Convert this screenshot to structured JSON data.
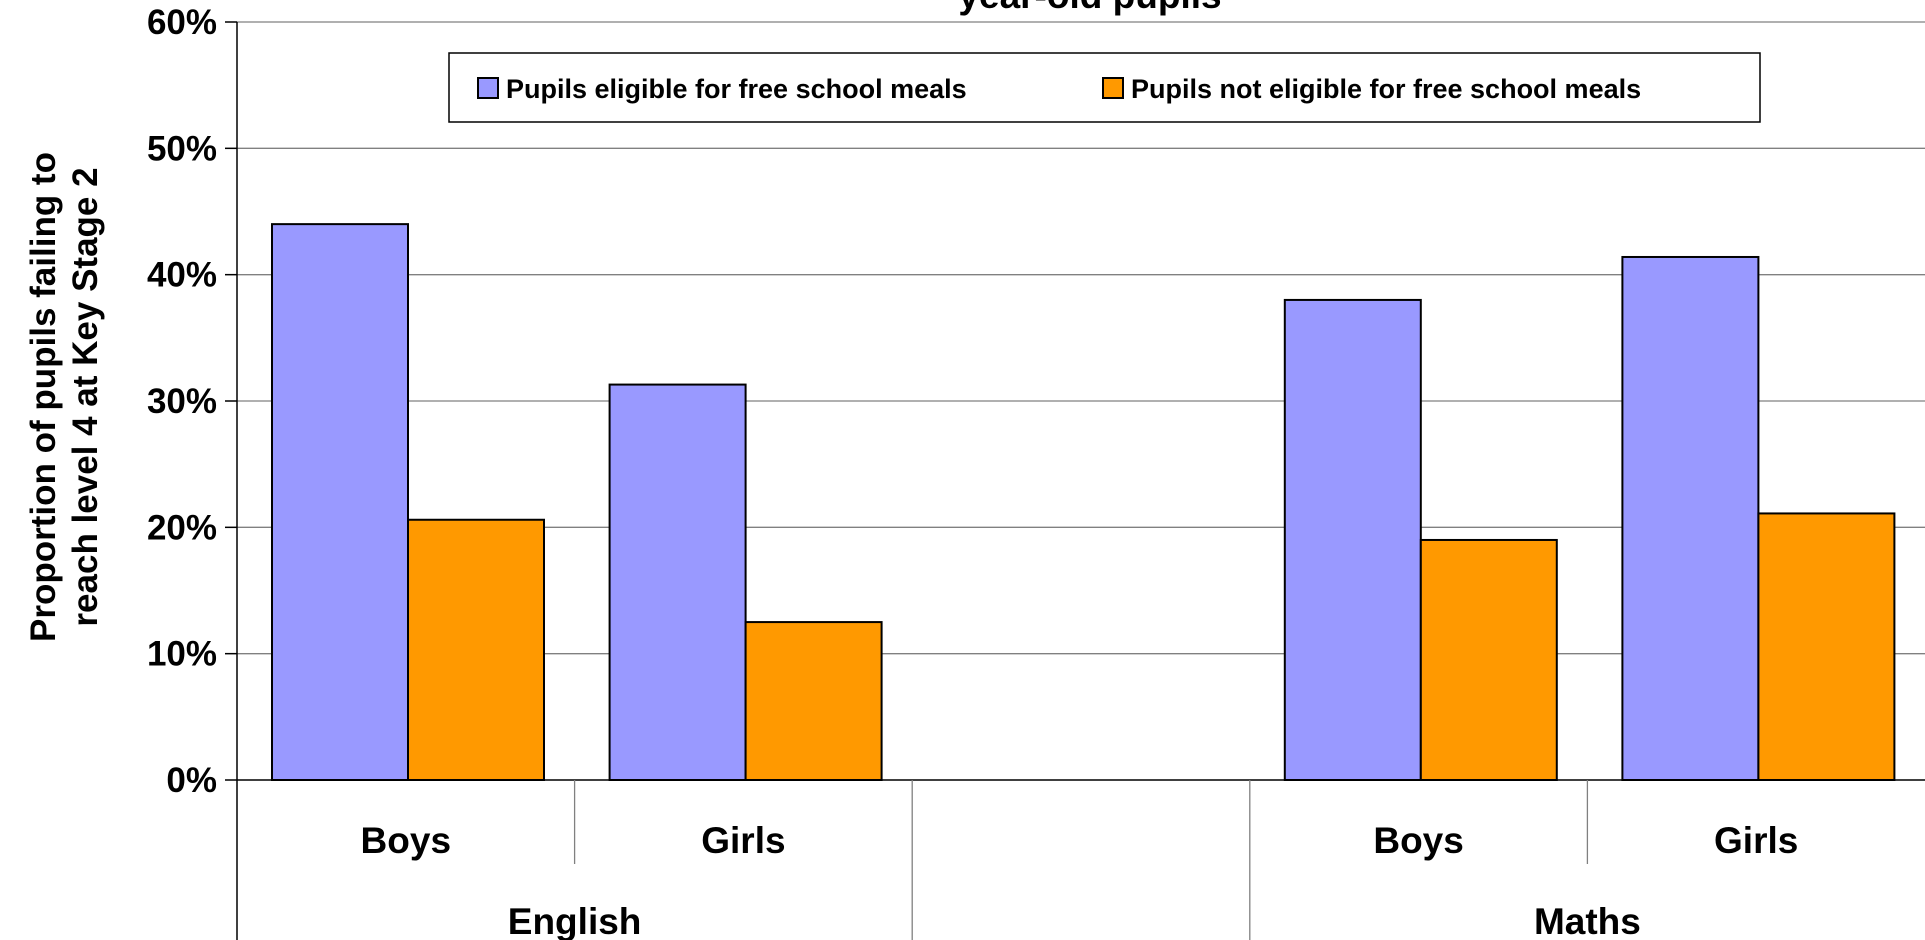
{
  "chart_data": {
    "type": "bar",
    "title": "year-old pupils",
    "ylabel": "Proportion of pupils failing to reach level 4 at Key Stage 2",
    "ylabel_lines": [
      "Proportion of pupils failing to",
      "reach level 4 at Key Stage 2"
    ],
    "xlabel": "",
    "ylim": [
      0,
      0.6
    ],
    "yticks": [
      0,
      0.1,
      0.2,
      0.3,
      0.4,
      0.5,
      0.6
    ],
    "ytick_labels": [
      "0%",
      "10%",
      "20%",
      "30%",
      "40%",
      "50%",
      "60%"
    ],
    "grid": true,
    "legend_position": "top-center",
    "categories": [
      "Boys",
      "Girls",
      "",
      "Boys",
      "Girls"
    ],
    "groups": [
      {
        "label": "English",
        "span": [
          0,
          1
        ]
      },
      {
        "label": "",
        "span": [
          2,
          2
        ]
      },
      {
        "label": "Maths",
        "span": [
          3,
          4
        ]
      }
    ],
    "series": [
      {
        "name": "Pupils eligible for free school meals",
        "color": "#9999FF",
        "values": [
          0.44,
          0.313,
          null,
          0.38,
          0.414
        ]
      },
      {
        "name": "Pupils not eligible for free school meals",
        "color": "#FF9900",
        "values": [
          0.206,
          0.125,
          null,
          0.19,
          0.211
        ]
      }
    ]
  }
}
